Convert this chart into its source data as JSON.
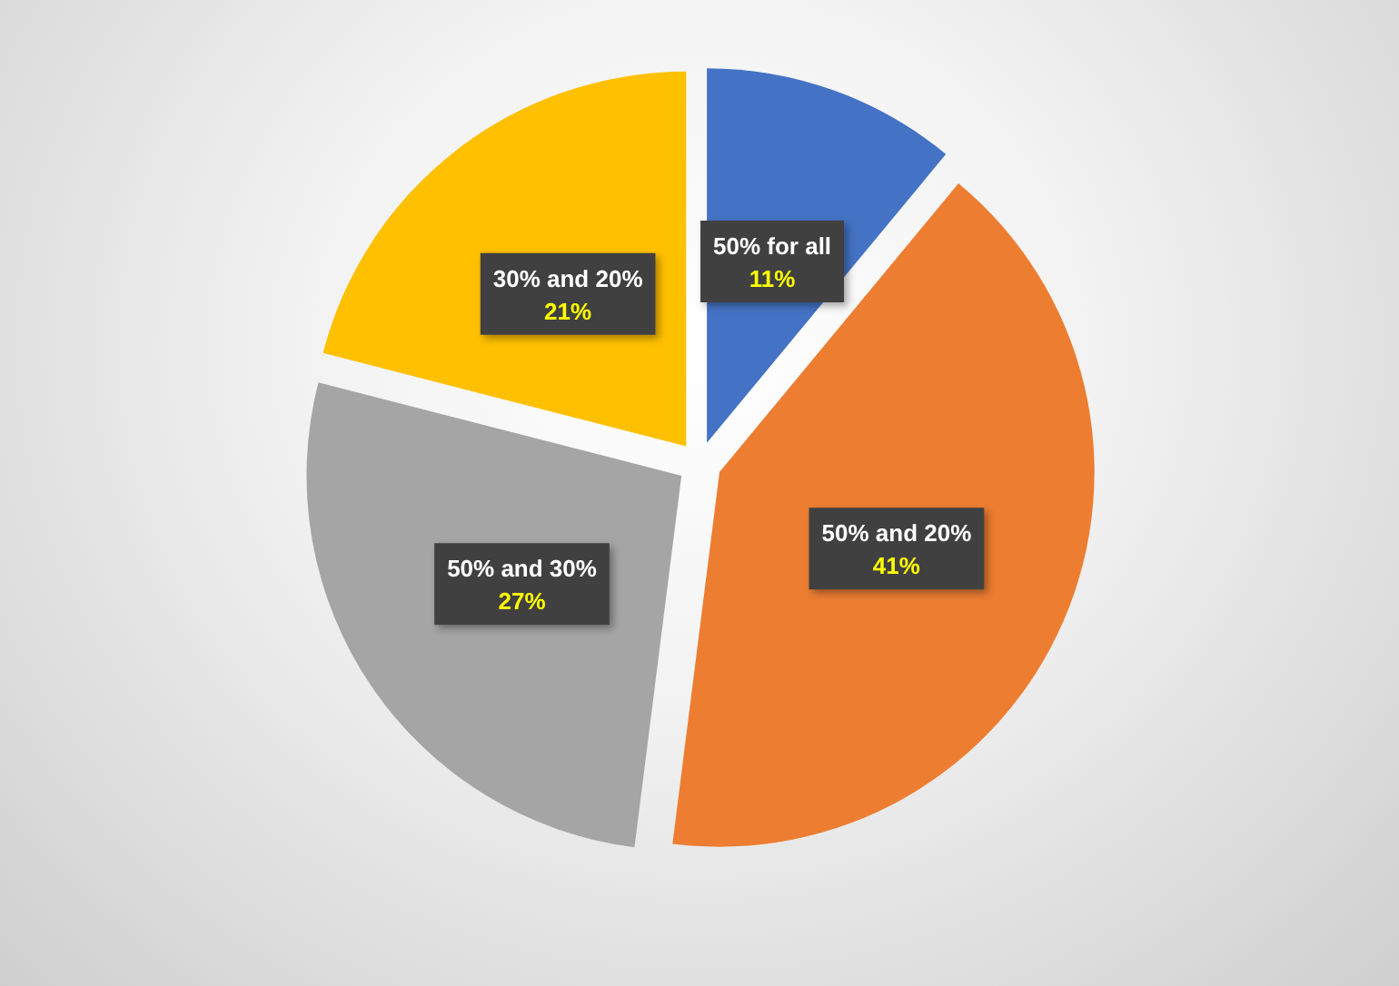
{
  "chart_data": {
    "type": "pie",
    "categories": [
      "50% for all",
      "50% and 20%",
      "50% and 30%",
      "30% and 20%"
    ],
    "values": [
      11,
      41,
      27,
      21
    ],
    "colors": [
      "#4472c4",
      "#ed7d31",
      "#a5a5a5",
      "#ffc000"
    ],
    "value_labels": [
      "11%",
      "41%",
      "27%",
      "21%"
    ],
    "legend": false
  }
}
